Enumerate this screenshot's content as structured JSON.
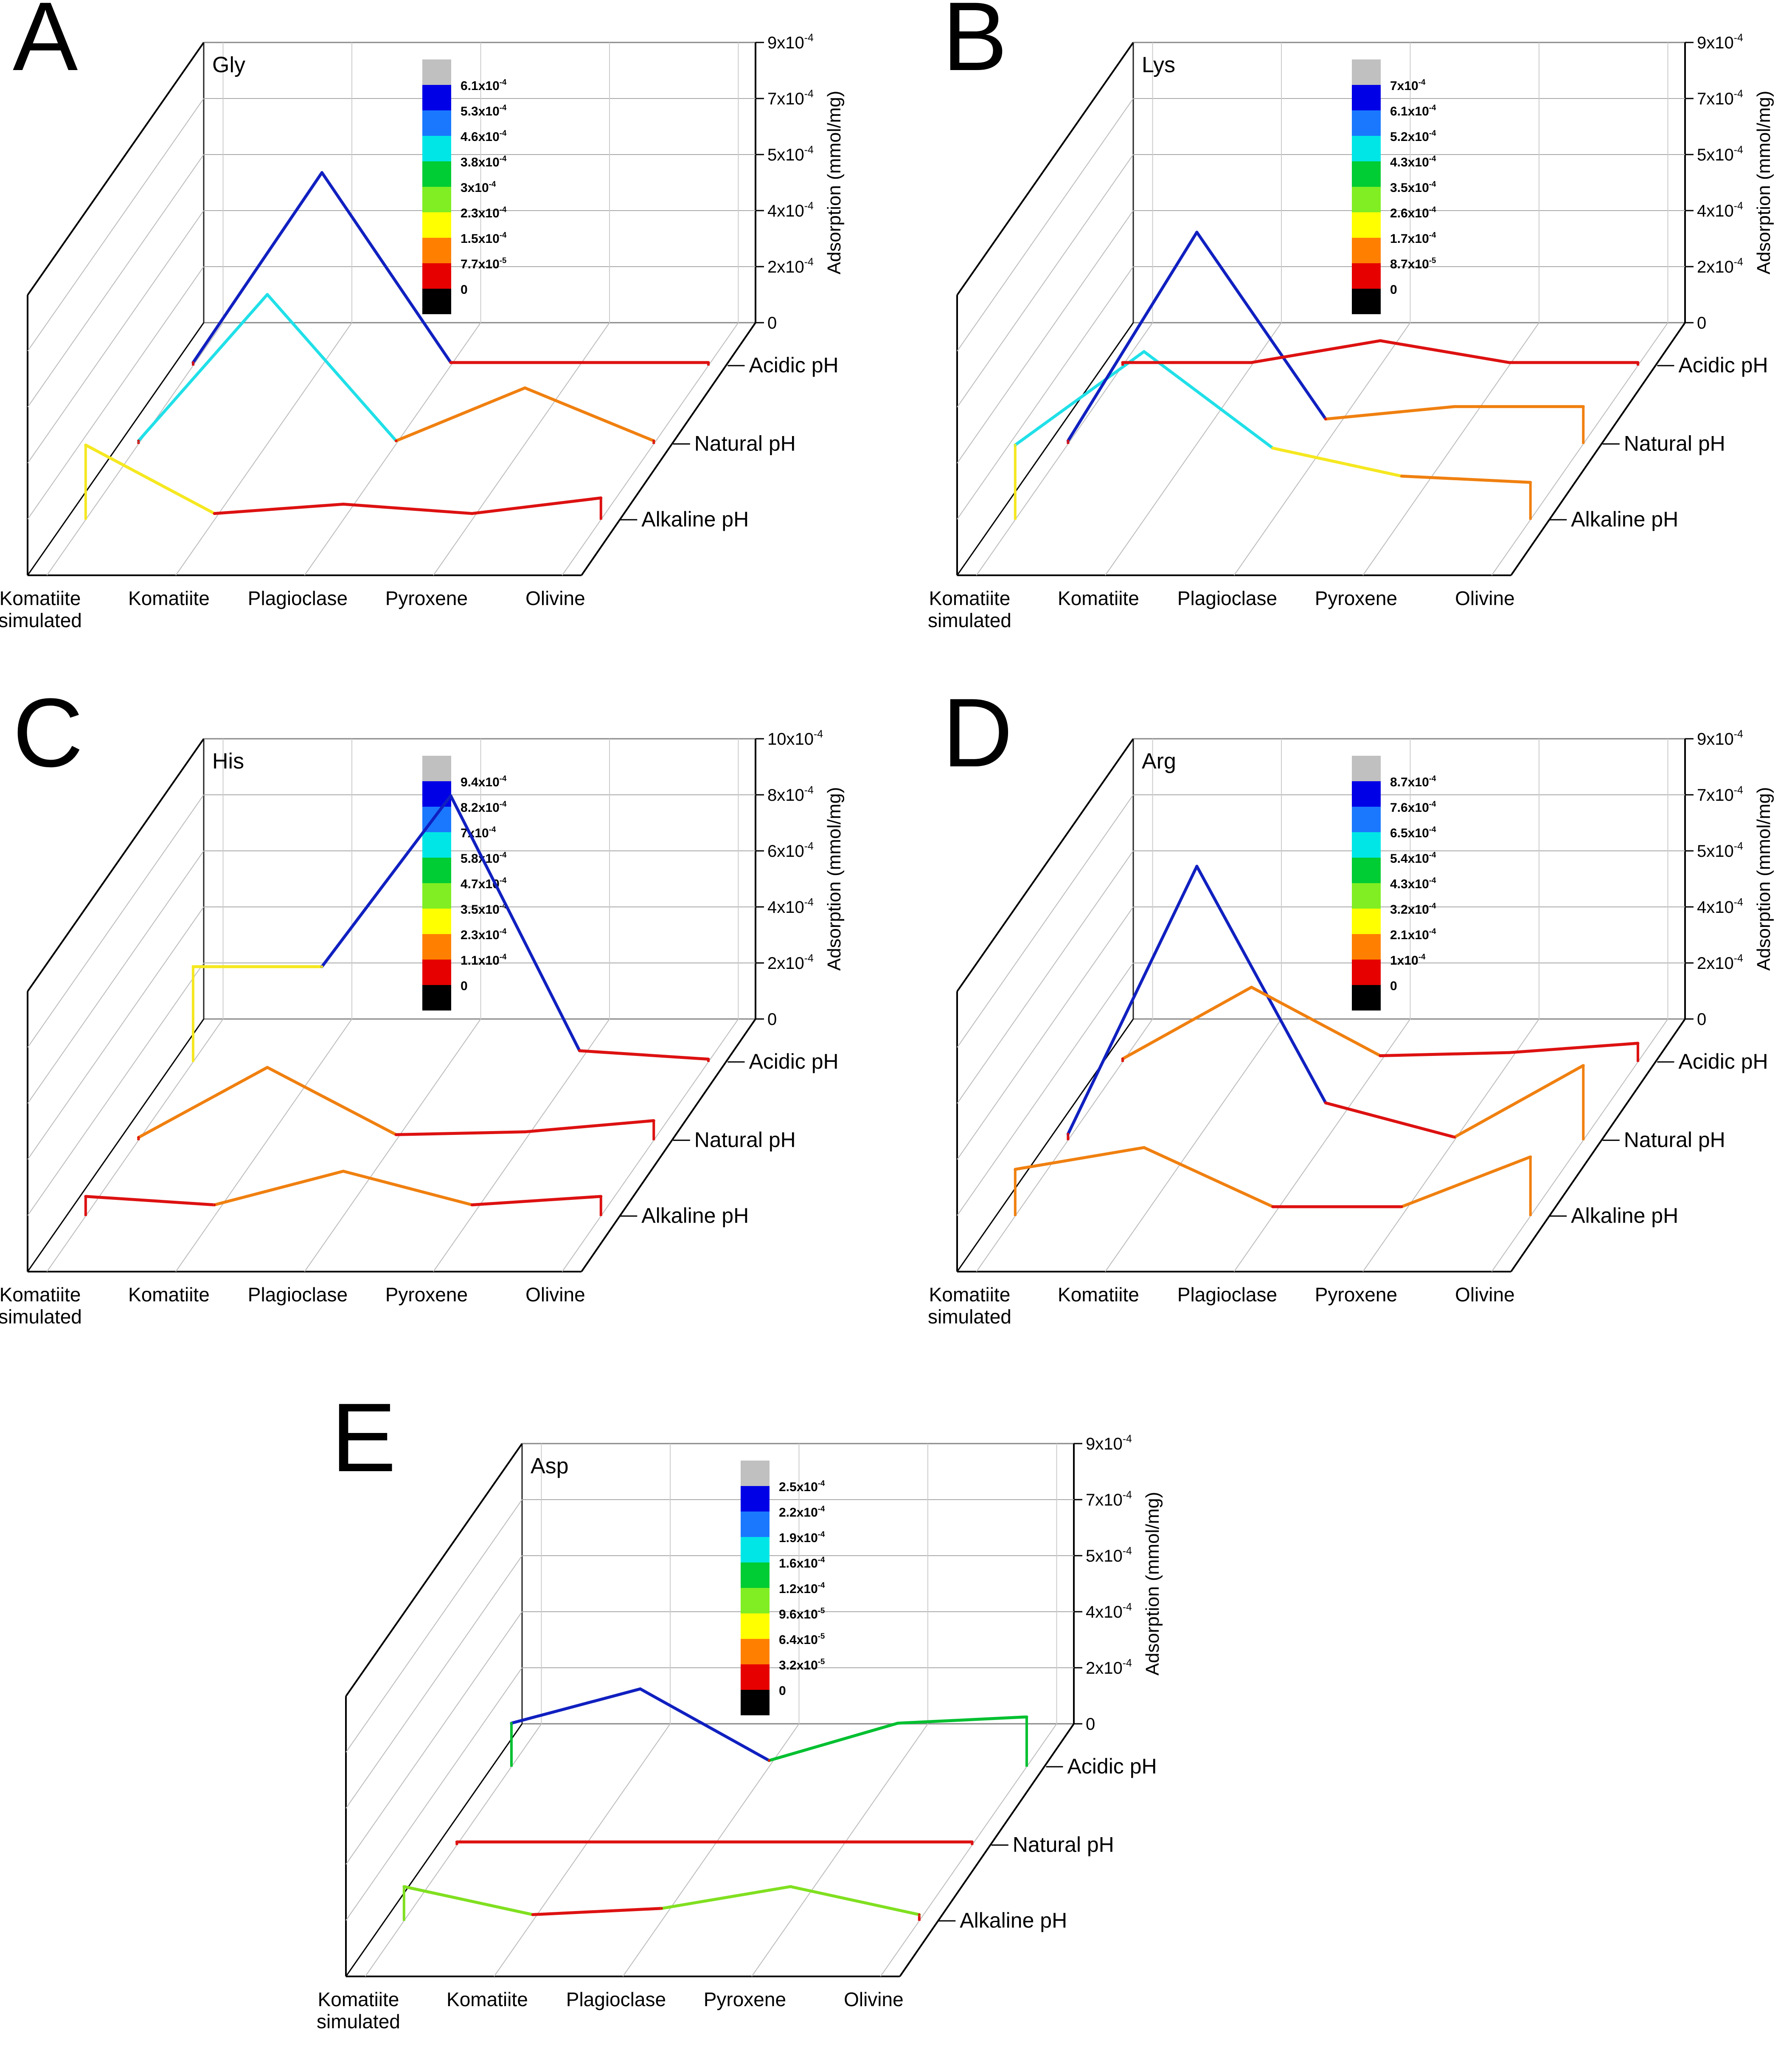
{
  "figure": {
    "shared": {
      "categories": [
        "Komatiite simulated",
        "Komatiite",
        "Plagioclase",
        "Pyroxene",
        "Olivine"
      ],
      "category_lines": [
        [
          "Komatiite",
          "simulated"
        ],
        [
          "Komatiite"
        ],
        [
          "Plagioclase"
        ],
        [
          "Pyroxene"
        ],
        [
          "Olivine"
        ]
      ],
      "depth_labels": [
        "Alkaline pH",
        "Natural pH",
        "Acidic pH"
      ],
      "zlabel": "Adsorption (mmol/mg)"
    }
  },
  "chart_data": [
    {
      "type": "line",
      "panel": "A",
      "title": "Gly",
      "zlim": [
        0,
        0.0009
      ],
      "z_ticks": [
        "0",
        "2x10-4",
        "4x10-4",
        "5x10-4",
        "7x10-4",
        "9x10-4"
      ],
      "legend": [
        "6.1x10-4",
        "5.3x10-4",
        "4.6x10-4",
        "3.8x10-4",
        "3x10-4",
        "2.3x10-4",
        "1.5x10-4",
        "7.7x10-5",
        "0"
      ],
      "series": [
        {
          "name": "Alkaline pH",
          "values": [
            0.00024,
            2e-05,
            5e-05,
            2e-05,
            7e-05
          ]
        },
        {
          "name": "Natural pH",
          "values": [
            1e-05,
            0.00048,
            1e-05,
            0.00018,
            1e-05
          ]
        },
        {
          "name": "Acidic pH",
          "values": [
            1e-05,
            0.00062,
            1e-05,
            1e-05,
            1e-05
          ]
        }
      ]
    },
    {
      "type": "line",
      "panel": "B",
      "title": "Lys",
      "zlim": [
        0,
        0.0009
      ],
      "z_ticks": [
        "0",
        "2x10-4",
        "4x10-4",
        "5x10-4",
        "7x10-4",
        "9x10-4"
      ],
      "legend": [
        "7x10-4",
        "6.1x10-4",
        "5.2x10-4",
        "4.3x10-4",
        "3.5x10-4",
        "2.6x10-4",
        "1.7x10-4",
        "8.7x10-5",
        "0"
      ],
      "series": [
        {
          "name": "Alkaline pH",
          "values": [
            0.00024,
            0.00054,
            0.00023,
            0.00014,
            0.00012
          ]
        },
        {
          "name": "Natural pH",
          "values": [
            1e-05,
            0.00068,
            8e-05,
            0.00012,
            0.00012
          ]
        },
        {
          "name": "Acidic pH",
          "values": [
            1e-05,
            1e-05,
            8e-05,
            1e-05,
            1e-05
          ]
        }
      ]
    },
    {
      "type": "line",
      "panel": "C",
      "title": "His",
      "zlim": [
        0,
        0.001
      ],
      "z_ticks": [
        "0",
        "2x10-4",
        "4x10-4",
        "6x10-4",
        "8x10-4",
        "10x10-4"
      ],
      "legend": [
        "9.4x10-4",
        "8.2x10-4",
        "7x10-4",
        "5.8x10-4",
        "4.7x10-4",
        "3.5x10-4",
        "2.3x10-4",
        "1.1x10-4",
        "0"
      ],
      "series": [
        {
          "name": "Alkaline pH",
          "values": [
            7e-05,
            4e-05,
            0.00016,
            4e-05,
            7e-05
          ]
        },
        {
          "name": "Natural pH",
          "values": [
            1e-05,
            0.00026,
            2e-05,
            3e-05,
            7e-05
          ]
        },
        {
          "name": "Acidic pH",
          "values": [
            0.00034,
            0.00034,
            0.00095,
            4e-05,
            1e-05
          ]
        }
      ]
    },
    {
      "type": "line",
      "panel": "D",
      "title": "Arg",
      "zlim": [
        0,
        0.0009
      ],
      "z_ticks": [
        "0",
        "2x10-4",
        "4x10-4",
        "5x10-4",
        "7x10-4",
        "9x10-4"
      ],
      "legend": [
        "8.7x10-4",
        "7.6x10-4",
        "6.5x10-4",
        "5.4x10-4",
        "4.3x10-4",
        "3.2x10-4",
        "2.1x10-4",
        "1x10-4",
        "0"
      ],
      "series": [
        {
          "name": "Alkaline pH",
          "values": [
            0.00015,
            0.00022,
            3e-05,
            3e-05,
            0.00019
          ]
        },
        {
          "name": "Natural pH",
          "values": [
            2e-05,
            0.00088,
            0.00012,
            1e-05,
            0.00024
          ]
        },
        {
          "name": "Acidic pH",
          "values": [
            1e-05,
            0.00024,
            2e-05,
            3e-05,
            6e-05
          ]
        }
      ]
    },
    {
      "type": "line",
      "panel": "E",
      "title": "Asp",
      "zlim": [
        0,
        0.0009
      ],
      "z_ticks": [
        "0",
        "2x10-4",
        "4x10-4",
        "5x10-4",
        "7x10-4",
        "9x10-4"
      ],
      "legend": [
        "2.5x10-4",
        "2.2x10-4",
        "1.9x10-4",
        "1.6x10-4",
        "1.2x10-4",
        "9.6x10-5",
        "6.4x10-5",
        "3.2x10-5",
        "0"
      ],
      "series": [
        {
          "name": "Alkaline pH",
          "values": [
            0.00011,
            2e-05,
            4e-05,
            0.00011,
            2e-05
          ]
        },
        {
          "name": "Natural pH",
          "values": [
            1e-05,
            1e-05,
            1e-05,
            1e-05,
            1e-05
          ]
        },
        {
          "name": "Acidic pH",
          "values": [
            0.00014,
            0.00025,
            2e-05,
            0.00014,
            0.00016
          ]
        }
      ]
    }
  ]
}
